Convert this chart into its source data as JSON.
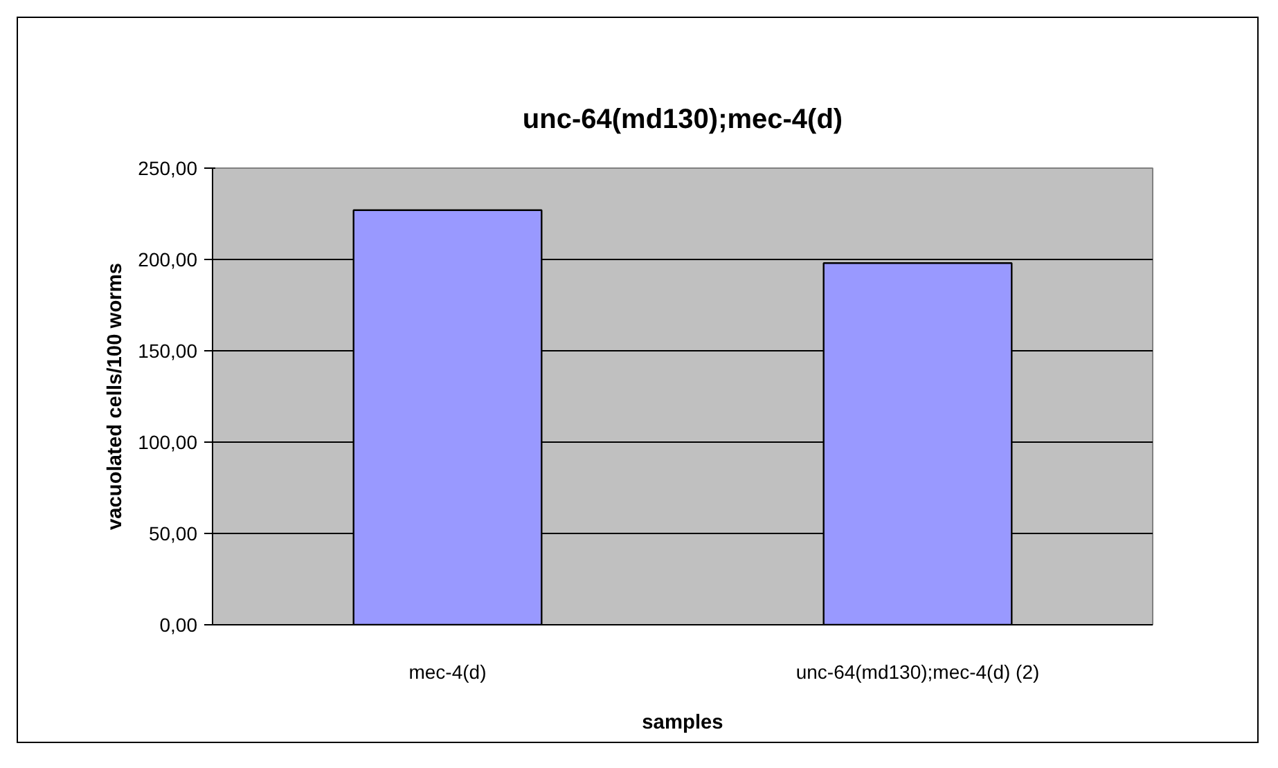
{
  "chart_data": {
    "type": "bar",
    "title": "unc-64(md130);mec-4(d)",
    "xlabel": "samples",
    "ylabel": "vacuolated cells/100 worms",
    "categories": [
      "mec-4(d)",
      "unc-64(md130);mec-4(d) (2)"
    ],
    "values": [
      227,
      198
    ],
    "color": "#9999ff",
    "ylim": [
      0,
      250
    ],
    "yticks": [
      {
        "value": 0,
        "label": "0,00"
      },
      {
        "value": 50,
        "label": "50,00"
      },
      {
        "value": 100,
        "label": "100,00"
      },
      {
        "value": 150,
        "label": "150,00"
      },
      {
        "value": 200,
        "label": "200,00"
      },
      {
        "value": 250,
        "label": "250,00"
      }
    ],
    "grid": "y"
  }
}
